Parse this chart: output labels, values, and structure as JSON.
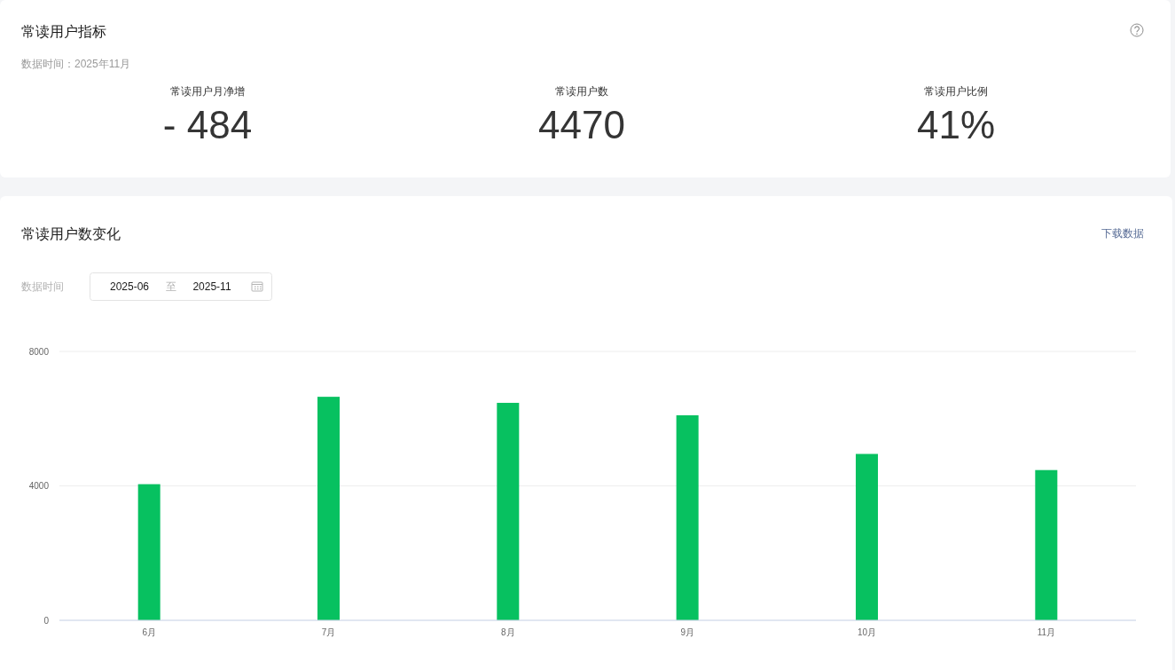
{
  "chart_data": [
    {
      "type": "other",
      "title": "常读用户指标",
      "subtitle": "数据时间：2025年11月",
      "annotations": [
        "常读用户月净增",
        "- 484",
        "常读用户数",
        "4470",
        "常读用户比例",
        "41%"
      ]
    },
    {
      "type": "bar",
      "title": "常读用户数变化",
      "annotations": [
        "下载数据",
        "数据时间",
        "2025-06",
        "至",
        "2025-11"
      ],
      "categories": [
        "6月",
        "7月",
        "8月",
        "9月",
        "10月",
        "11月"
      ],
      "values": [
        4050,
        6650,
        6470,
        6100,
        4950,
        4470
      ],
      "color": "#07c160",
      "ylim": [
        0,
        8000
      ],
      "yticks": [
        0,
        4000,
        8000
      ],
      "grid": "y"
    }
  ]
}
